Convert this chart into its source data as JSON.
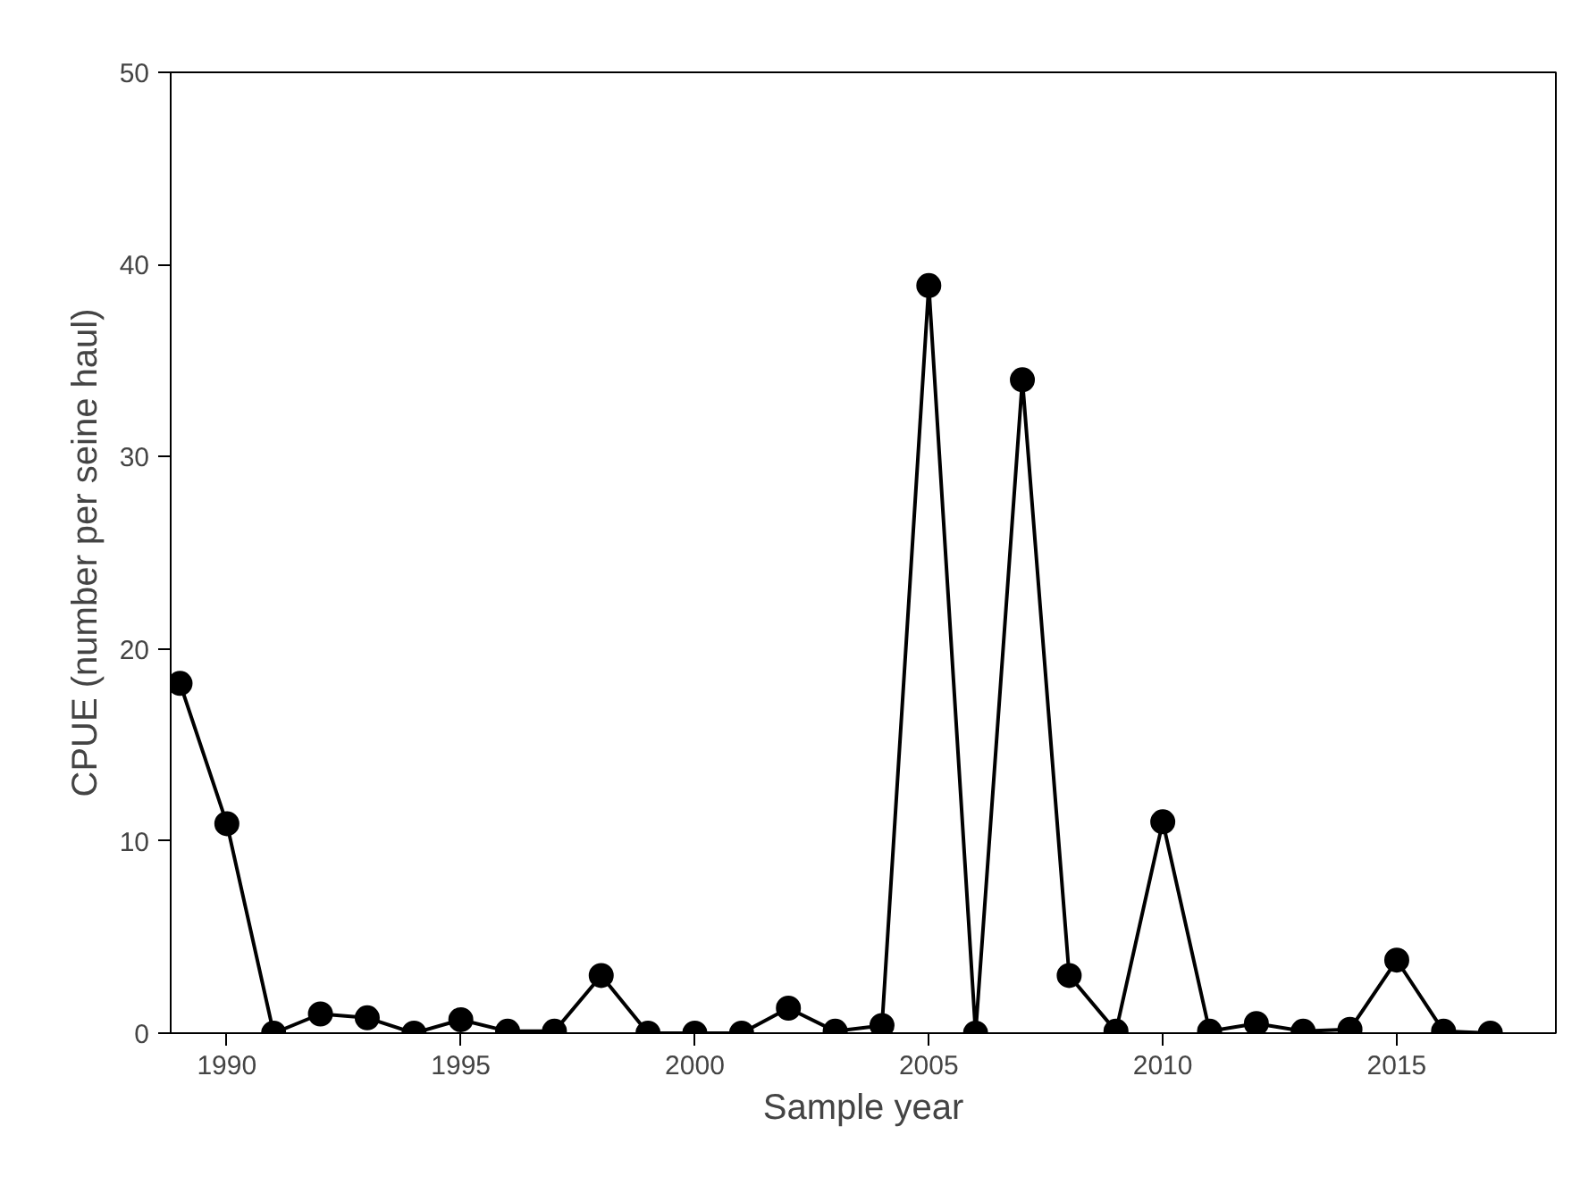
{
  "chart_data": {
    "type": "line",
    "xlabel": "Sample year",
    "ylabel": "CPUE (number per seine haul)",
    "x": [
      1989,
      1990,
      1991,
      1992,
      1993,
      1994,
      1995,
      1996,
      1997,
      1998,
      1999,
      2000,
      2001,
      2002,
      2003,
      2004,
      2005,
      2006,
      2007,
      2008,
      2009,
      2010,
      2011,
      2012,
      2013,
      2014,
      2015,
      2016,
      2017
    ],
    "series": [
      {
        "color": "#000000",
        "values": [
          18.2,
          10.9,
          0,
          1.0,
          0.8,
          0,
          0.7,
          0.1,
          0.1,
          3.0,
          0,
          0,
          0,
          1.3,
          0.1,
          0.4,
          38.9,
          0,
          34,
          3.0,
          0.1,
          11,
          0.1,
          0.5,
          0.1,
          0.2,
          3.8,
          0.1,
          0
        ]
      }
    ],
    "xlim": [
      1988.8,
      2018.4
    ],
    "ylim": [
      0,
      50
    ],
    "xticks": [
      1990,
      1995,
      2000,
      2005,
      2010,
      2015
    ],
    "yticks": [
      0,
      10,
      20,
      30,
      40,
      50
    ],
    "grid": false,
    "marker": "circle",
    "line_style": "solid"
  }
}
